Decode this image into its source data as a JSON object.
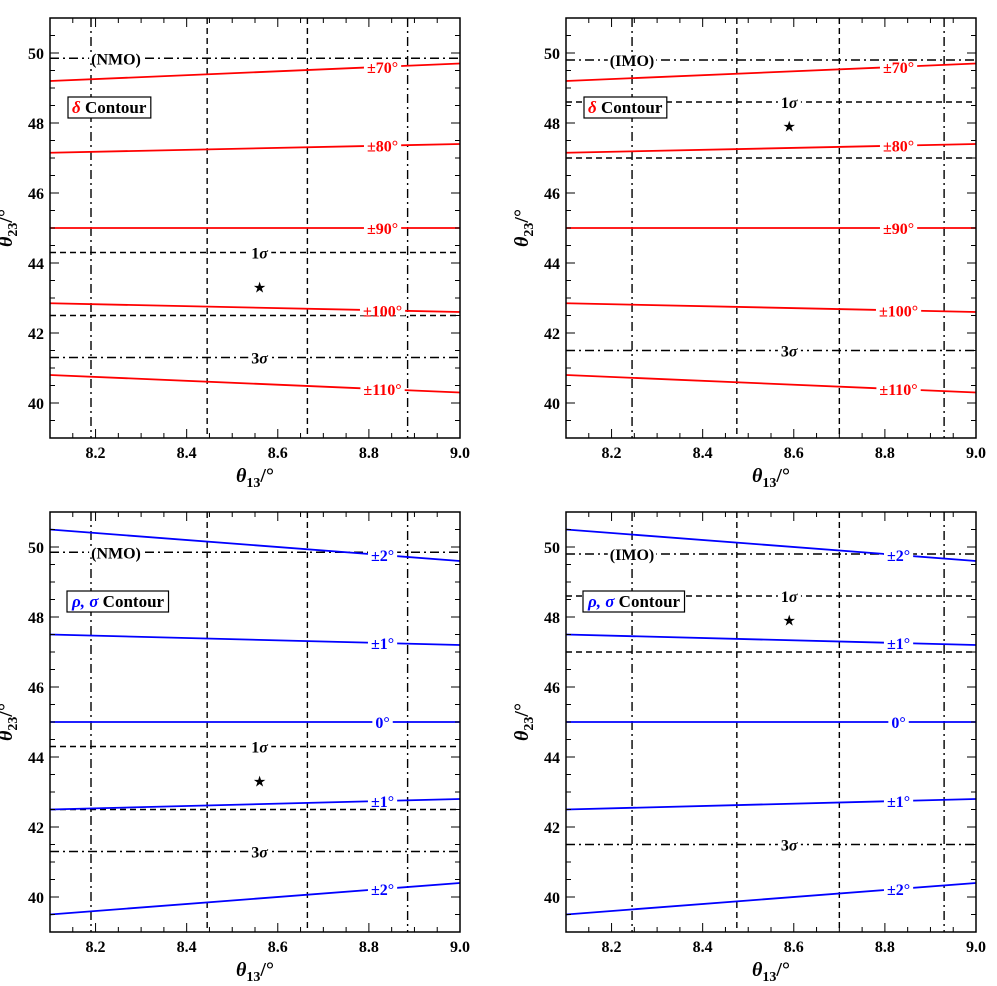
{
  "chart_data": [
    {
      "type": "line",
      "ordering": "(NMO)",
      "box_symbol": "δ",
      "box_suffix": "Contour",
      "xlabel_symbol": "θ",
      "xlabel_sub": "13",
      "xlabel_unit": "/°",
      "ylabel_symbol": "θ",
      "ylabel_sub": "23",
      "ylabel_unit": "/°",
      "xlim": [
        8.1,
        9.0
      ],
      "ylim": [
        39.0,
        51.0
      ],
      "xticks": [
        "8.2",
        "8.4",
        "8.6",
        "8.8",
        "9.0"
      ],
      "yticks": [
        "40",
        "42",
        "44",
        "46",
        "48",
        "50"
      ],
      "series_color": "#ff0000",
      "series": [
        {
          "label": "±70°",
          "x": [
            8.1,
            9.0
          ],
          "y": [
            49.2,
            49.7
          ],
          "label_x": 8.83
        },
        {
          "label": "±80°",
          "x": [
            8.1,
            9.0
          ],
          "y": [
            47.15,
            47.4
          ],
          "label_x": 8.83
        },
        {
          "label": "±90°",
          "x": [
            8.1,
            9.0
          ],
          "y": [
            45.0,
            45.0
          ],
          "label_x": 8.83
        },
        {
          "label": "±100°",
          "x": [
            8.1,
            9.0
          ],
          "y": [
            42.85,
            42.6
          ],
          "label_x": 8.83
        },
        {
          "label": "±110°",
          "x": [
            8.1,
            9.0
          ],
          "y": [
            40.8,
            40.3
          ],
          "label_x": 8.83
        }
      ],
      "h_lines": [
        {
          "y": 49.85,
          "style": "dashdot"
        },
        {
          "y": 44.3,
          "style": "dashed"
        },
        {
          "y": 42.5,
          "style": "dashed"
        },
        {
          "y": 41.3,
          "style": "dashdot"
        }
      ],
      "v_lines": [
        {
          "x": 8.19,
          "style": "dashdot"
        },
        {
          "x": 8.445,
          "style": "dashed"
        },
        {
          "x": 8.665,
          "style": "dashed"
        },
        {
          "x": 8.885,
          "style": "dashdot"
        }
      ],
      "sigma_labels": [
        {
          "text": "1σ",
          "x": 8.56,
          "y": 44.3
        },
        {
          "text": "3σ",
          "x": 8.56,
          "y": 41.3
        }
      ],
      "best_fit": {
        "x": 8.56,
        "y": 43.3
      }
    },
    {
      "type": "line",
      "ordering": "(IMO)",
      "box_symbol": "δ",
      "box_suffix": "Contour",
      "xlabel_symbol": "θ",
      "xlabel_sub": "13",
      "xlabel_unit": "/°",
      "ylabel_symbol": "θ",
      "ylabel_sub": "23",
      "ylabel_unit": "/°",
      "xlim": [
        8.1,
        9.0
      ],
      "ylim": [
        39.0,
        51.0
      ],
      "xticks": [
        "8.2",
        "8.4",
        "8.6",
        "8.8",
        "9.0"
      ],
      "yticks": [
        "40",
        "42",
        "44",
        "46",
        "48",
        "50"
      ],
      "series_color": "#ff0000",
      "series": [
        {
          "label": "±70°",
          "x": [
            8.1,
            9.0
          ],
          "y": [
            49.2,
            49.7
          ],
          "label_x": 8.83
        },
        {
          "label": "±80°",
          "x": [
            8.1,
            9.0
          ],
          "y": [
            47.15,
            47.4
          ],
          "label_x": 8.83
        },
        {
          "label": "±90°",
          "x": [
            8.1,
            9.0
          ],
          "y": [
            45.0,
            45.0
          ],
          "label_x": 8.83
        },
        {
          "label": "±100°",
          "x": [
            8.1,
            9.0
          ],
          "y": [
            42.85,
            42.6
          ],
          "label_x": 8.83
        },
        {
          "label": "±110°",
          "x": [
            8.1,
            9.0
          ],
          "y": [
            40.8,
            40.3
          ],
          "label_x": 8.83
        }
      ],
      "h_lines": [
        {
          "y": 49.8,
          "style": "dashdot"
        },
        {
          "y": 48.6,
          "style": "dashed"
        },
        {
          "y": 47.0,
          "style": "dashed"
        },
        {
          "y": 41.5,
          "style": "dashdot"
        }
      ],
      "v_lines": [
        {
          "x": 8.245,
          "style": "dashdot"
        },
        {
          "x": 8.475,
          "style": "dashed"
        },
        {
          "x": 8.7,
          "style": "dashed"
        },
        {
          "x": 8.93,
          "style": "dashdot"
        }
      ],
      "sigma_labels": [
        {
          "text": "1σ",
          "x": 8.59,
          "y": 48.6
        },
        {
          "text": "3σ",
          "x": 8.59,
          "y": 41.5
        }
      ],
      "best_fit": {
        "x": 8.59,
        "y": 47.9
      }
    },
    {
      "type": "line",
      "ordering": "(NMO)",
      "box_symbol": "ρ, σ",
      "box_suffix": "Contour",
      "xlabel_symbol": "θ",
      "xlabel_sub": "13",
      "xlabel_unit": "/°",
      "ylabel_symbol": "θ",
      "ylabel_sub": "23",
      "ylabel_unit": "/°",
      "xlim": [
        8.1,
        9.0
      ],
      "ylim": [
        39.0,
        51.0
      ],
      "xticks": [
        "8.2",
        "8.4",
        "8.6",
        "8.8",
        "9.0"
      ],
      "yticks": [
        "40",
        "42",
        "44",
        "46",
        "48",
        "50"
      ],
      "series_color": "#0000ff",
      "series": [
        {
          "label": "±2°",
          "x": [
            8.1,
            9.0
          ],
          "y": [
            50.5,
            49.6
          ],
          "label_x": 8.83
        },
        {
          "label": "±1°",
          "x": [
            8.1,
            9.0
          ],
          "y": [
            47.5,
            47.2
          ],
          "label_x": 8.83
        },
        {
          "label": "0°",
          "x": [
            8.1,
            9.0
          ],
          "y": [
            45.0,
            45.0
          ],
          "label_x": 8.83
        },
        {
          "label": "±1°",
          "x": [
            8.1,
            9.0
          ],
          "y": [
            42.5,
            42.8
          ],
          "label_x": 8.83
        },
        {
          "label": "±2°",
          "x": [
            8.1,
            9.0
          ],
          "y": [
            39.5,
            40.4
          ],
          "label_x": 8.83
        }
      ],
      "h_lines": [
        {
          "y": 49.85,
          "style": "dashdot"
        },
        {
          "y": 44.3,
          "style": "dashed"
        },
        {
          "y": 42.5,
          "style": "dashed"
        },
        {
          "y": 41.3,
          "style": "dashdot"
        }
      ],
      "v_lines": [
        {
          "x": 8.19,
          "style": "dashdot"
        },
        {
          "x": 8.445,
          "style": "dashed"
        },
        {
          "x": 8.665,
          "style": "dashed"
        },
        {
          "x": 8.885,
          "style": "dashdot"
        }
      ],
      "sigma_labels": [
        {
          "text": "1σ",
          "x": 8.56,
          "y": 44.3
        },
        {
          "text": "3σ",
          "x": 8.56,
          "y": 41.3
        }
      ],
      "best_fit": {
        "x": 8.56,
        "y": 43.3
      }
    },
    {
      "type": "line",
      "ordering": "(IMO)",
      "box_symbol": "ρ, σ",
      "box_suffix": "Contour",
      "xlabel_symbol": "θ",
      "xlabel_sub": "13",
      "xlabel_unit": "/°",
      "ylabel_symbol": "θ",
      "ylabel_sub": "23",
      "ylabel_unit": "/°",
      "xlim": [
        8.1,
        9.0
      ],
      "ylim": [
        39.0,
        51.0
      ],
      "xticks": [
        "8.2",
        "8.4",
        "8.6",
        "8.8",
        "9.0"
      ],
      "yticks": [
        "40",
        "42",
        "44",
        "46",
        "48",
        "50"
      ],
      "series_color": "#0000ff",
      "series": [
        {
          "label": "±2°",
          "x": [
            8.1,
            9.0
          ],
          "y": [
            50.5,
            49.6
          ],
          "label_x": 8.83
        },
        {
          "label": "±1°",
          "x": [
            8.1,
            9.0
          ],
          "y": [
            47.5,
            47.2
          ],
          "label_x": 8.83
        },
        {
          "label": "0°",
          "x": [
            8.1,
            9.0
          ],
          "y": [
            45.0,
            45.0
          ],
          "label_x": 8.83
        },
        {
          "label": "±1°",
          "x": [
            8.1,
            9.0
          ],
          "y": [
            42.5,
            42.8
          ],
          "label_x": 8.83
        },
        {
          "label": "±2°",
          "x": [
            8.1,
            9.0
          ],
          "y": [
            39.5,
            40.4
          ],
          "label_x": 8.83
        }
      ],
      "h_lines": [
        {
          "y": 49.8,
          "style": "dashdot"
        },
        {
          "y": 48.6,
          "style": "dashed"
        },
        {
          "y": 47.0,
          "style": "dashed"
        },
        {
          "y": 41.5,
          "style": "dashdot"
        }
      ],
      "v_lines": [
        {
          "x": 8.245,
          "style": "dashdot"
        },
        {
          "x": 8.475,
          "style": "dashed"
        },
        {
          "x": 8.7,
          "style": "dashed"
        },
        {
          "x": 8.93,
          "style": "dashdot"
        }
      ],
      "sigma_labels": [
        {
          "text": "1σ",
          "x": 8.59,
          "y": 48.6
        },
        {
          "text": "3σ",
          "x": 8.59,
          "y": 41.5
        }
      ],
      "best_fit": {
        "x": 8.59,
        "y": 47.9
      }
    }
  ]
}
